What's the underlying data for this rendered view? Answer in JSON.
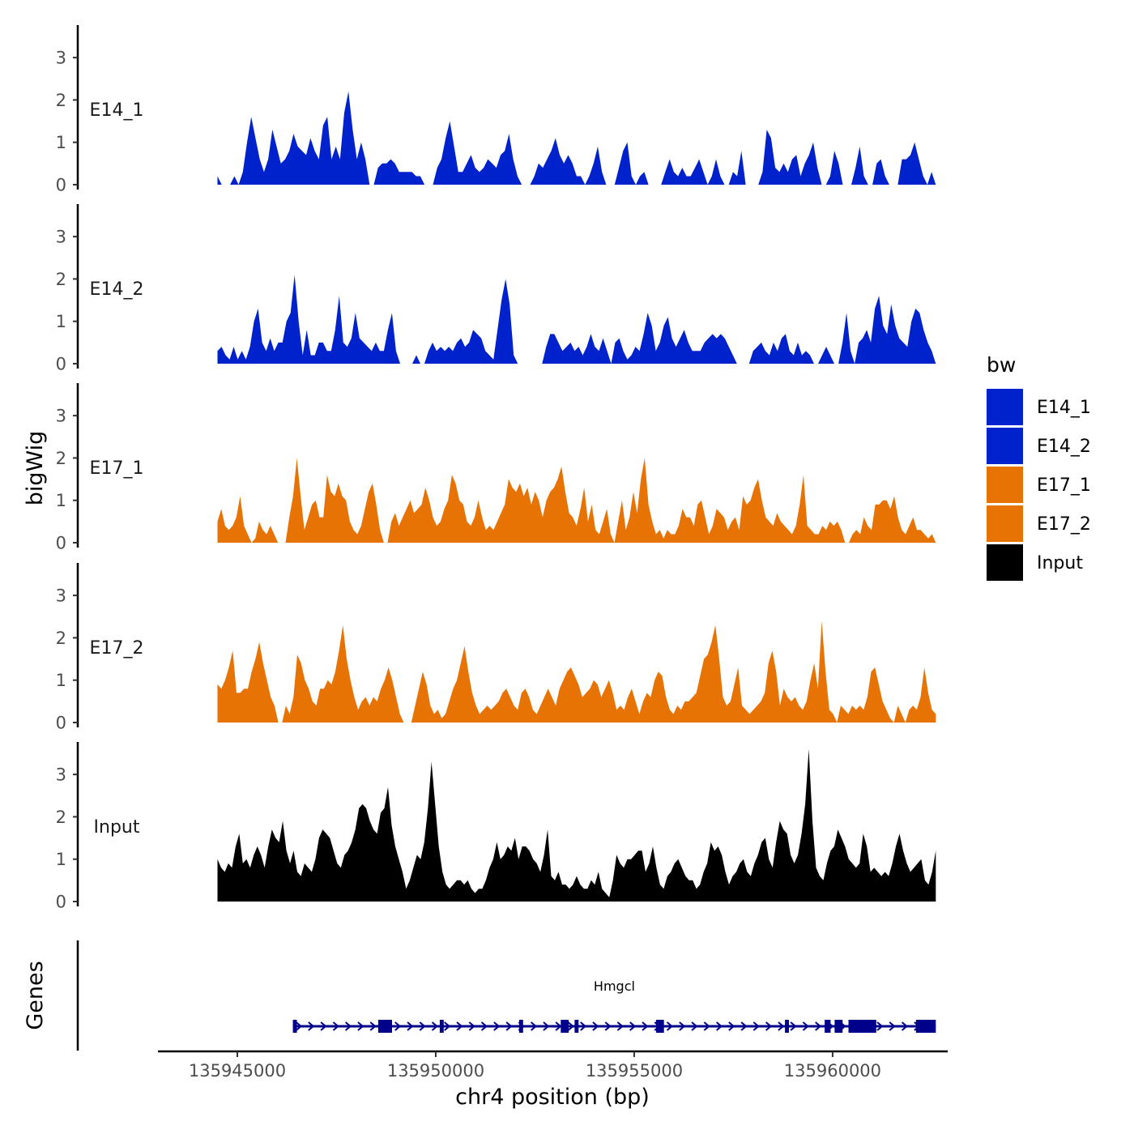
{
  "chart_data": {
    "type": "area",
    "chromosome": "chr4",
    "xlabel": "chr4 position (bp)",
    "ylabel": "bigWig",
    "genes_label": "Genes",
    "xlim": [
      135943000,
      135962900
    ],
    "ylim": [
      0,
      3.7
    ],
    "x_ticks": [
      135945000,
      135950000,
      135955000,
      135960000
    ],
    "x_tick_labels": [
      "135945000",
      "135950000",
      "135955000",
      "135960000"
    ],
    "y_ticks": [
      0,
      1,
      2,
      3
    ],
    "y_tick_labels": [
      "0",
      "1",
      "2",
      "3"
    ],
    "x_range": [
      135944500,
      135962600
    ],
    "legend": {
      "title": "bw",
      "entries": [
        {
          "label": "E14_1",
          "color": "#0022cc"
        },
        {
          "label": "E14_2",
          "color": "#0022cc"
        },
        {
          "label": "E17_1",
          "color": "#e87305"
        },
        {
          "label": "E17_2",
          "color": "#e87305"
        },
        {
          "label": "Input",
          "color": "#000000"
        }
      ]
    },
    "series": [
      {
        "name": "E14_1",
        "color": "#0022cc",
        "values": [
          0.2,
          0,
          0,
          0,
          0.2,
          0,
          0.3,
          1.0,
          1.6,
          1.1,
          0.6,
          0.3,
          0.6,
          1.3,
          0.9,
          0.5,
          0.6,
          0.8,
          1.2,
          0.9,
          0.8,
          0.7,
          1.1,
          0.8,
          0.6,
          1.4,
          1.6,
          0.6,
          0.9,
          0.6,
          1.7,
          2.2,
          1.3,
          0.6,
          1.0,
          0.6,
          0,
          0,
          0.4,
          0.5,
          0.5,
          0.6,
          0.5,
          0.3,
          0.3,
          0.3,
          0.3,
          0.2,
          0.2,
          0,
          0,
          0,
          0.4,
          0.6,
          1.1,
          1.5,
          0.9,
          0.3,
          0.3,
          0.5,
          0.7,
          0.4,
          0.3,
          0.4,
          0.6,
          0.5,
          0.4,
          0.7,
          0.8,
          1.2,
          0.6,
          0.2,
          0,
          0,
          0,
          0.2,
          0.5,
          0.4,
          0.6,
          0.8,
          1.1,
          0.7,
          0.5,
          0.7,
          0.5,
          0.2,
          0.2,
          0,
          0.2,
          0.5,
          0.9,
          0.3,
          0,
          0,
          0,
          0.4,
          0.8,
          1.0,
          0.2,
          0,
          0.2,
          0.3,
          0,
          0,
          0,
          0,
          0.3,
          0.6,
          0.3,
          0.2,
          0.4,
          0.2,
          0.2,
          0.4,
          0.6,
          0.3,
          0,
          0.2,
          0.6,
          0.2,
          0,
          0,
          0.3,
          0.2,
          0.8,
          0,
          0,
          0,
          0,
          0.3,
          1.3,
          1.1,
          0.4,
          0.3,
          0.5,
          0.3,
          0.6,
          0.7,
          0.2,
          0.5,
          0.7,
          1.0,
          0.4,
          0,
          0,
          0.2,
          0.8,
          0.5,
          0,
          0,
          0,
          0.4,
          0.9,
          0.2,
          0,
          0,
          0.5,
          0.6,
          0.2,
          0,
          0,
          0,
          0.6,
          0.6,
          0.7,
          1.0,
          0.6,
          0.2,
          0,
          0.3,
          0
        ]
      },
      {
        "name": "E14_2",
        "color": "#0022cc",
        "values": [
          0.3,
          0.4,
          0.2,
          0.1,
          0.4,
          0.1,
          0.3,
          0.1,
          0.4,
          1.0,
          1.3,
          0.5,
          0.3,
          0.6,
          0.3,
          0.5,
          0.5,
          1.0,
          1.2,
          2.1,
          1.0,
          0.2,
          0.8,
          0.2,
          0.2,
          0.5,
          0.5,
          0.3,
          0.3,
          0.8,
          1.6,
          0.5,
          0.4,
          0.6,
          1.2,
          0.6,
          0.5,
          0.4,
          0.3,
          0.5,
          0.3,
          0.3,
          0.8,
          1.2,
          0.3,
          0,
          0,
          0,
          0,
          0.2,
          0,
          0,
          0.3,
          0.5,
          0.3,
          0.4,
          0.3,
          0.4,
          0.3,
          0.5,
          0.6,
          0.4,
          0.5,
          0.8,
          0.7,
          0.6,
          0.3,
          0.2,
          0.1,
          0.8,
          1.5,
          2.0,
          1.4,
          0.2,
          0,
          0,
          0,
          0,
          0,
          0,
          0,
          0.4,
          0.7,
          0.7,
          0.5,
          0.3,
          0.4,
          0.5,
          0.3,
          0.4,
          0.2,
          0.4,
          0.7,
          0.4,
          0.3,
          0.6,
          0.3,
          0,
          0.5,
          0.6,
          0.3,
          0.1,
          0.2,
          0.4,
          0.3,
          0.7,
          1.2,
          0.9,
          0.3,
          0.5,
          0.9,
          1.1,
          0.6,
          0.4,
          0.6,
          0.8,
          0.5,
          0.3,
          0.3,
          0.3,
          0.5,
          0.6,
          0.7,
          0.6,
          0.7,
          0.6,
          0.4,
          0.2,
          0,
          0,
          0,
          0,
          0.3,
          0.4,
          0.5,
          0.3,
          0.2,
          0.5,
          0.3,
          0.6,
          0.7,
          0.3,
          0.2,
          0.5,
          0.2,
          0.3,
          0.2,
          0,
          0,
          0.2,
          0.4,
          0.2,
          0,
          0,
          0.5,
          1.2,
          0.3,
          0,
          0.5,
          0.6,
          0.8,
          0.5,
          1.3,
          1.6,
          0.9,
          0.7,
          1.4,
          0.9,
          0.6,
          0.5,
          0.4,
          1.0,
          1.3,
          1.2,
          0.8,
          0.5,
          0.3,
          0
        ]
      },
      {
        "name": "E17_1",
        "color": "#e87305",
        "values": [
          0.5,
          0.8,
          0.4,
          0.3,
          0.4,
          0.6,
          1.1,
          0.4,
          0.2,
          0,
          0.1,
          0.5,
          0.3,
          0.2,
          0.4,
          0.2,
          0,
          0,
          0,
          0.6,
          1.1,
          2.0,
          1.1,
          0.3,
          0.6,
          0.9,
          1.0,
          0.6,
          0.6,
          1.6,
          1.2,
          1.1,
          1.4,
          1.1,
          1.0,
          0.5,
          0.3,
          0.2,
          0.4,
          0.8,
          1.2,
          1.4,
          0.9,
          0.3,
          0,
          0,
          0.5,
          0.7,
          0.4,
          0.6,
          0.8,
          1.0,
          0.7,
          0.8,
          0.9,
          1.3,
          1.0,
          0.6,
          0.4,
          0.5,
          0.8,
          1.0,
          1.6,
          1.4,
          1.0,
          0.9,
          0.5,
          0.4,
          0.6,
          1.0,
          0.6,
          0.3,
          0.4,
          0.3,
          0.5,
          0.7,
          0.9,
          1.5,
          1.3,
          1.2,
          1.4,
          1.1,
          1.3,
          0.9,
          1.2,
          1.0,
          0.6,
          1.0,
          1.2,
          1.3,
          1.5,
          1.8,
          1.2,
          0.7,
          0.6,
          0.4,
          0.8,
          1.3,
          0.5,
          0.9,
          0.3,
          0.2,
          0.5,
          0.8,
          0.2,
          0,
          0.5,
          1.0,
          0.3,
          0.6,
          1.2,
          0.7,
          1.5,
          2.0,
          0.9,
          0.5,
          0.2,
          0.3,
          0.1,
          0.3,
          0.2,
          0.2,
          0.4,
          0.8,
          0.6,
          0.6,
          0.4,
          0.9,
          1.0,
          0.6,
          0.2,
          0.4,
          0.8,
          0.7,
          0.6,
          0.3,
          0.5,
          0.6,
          0.3,
          1.1,
          0.9,
          1.0,
          1.3,
          1.5,
          1.0,
          0.6,
          0.5,
          0.4,
          0.7,
          0.5,
          0.4,
          0.3,
          0.2,
          0.4,
          0.9,
          1.6,
          0.4,
          0.3,
          0.2,
          0.2,
          0.4,
          0.3,
          0.5,
          0.4,
          0.5,
          0.3,
          0,
          0,
          0.2,
          0.3,
          0.2,
          0.6,
          0.4,
          0.3,
          0.9,
          0.9,
          1.0,
          1.0,
          0.8,
          1.1,
          0.6,
          0.3,
          0.2,
          0.4,
          0.6,
          0.3,
          0.3,
          0.2,
          0.1,
          0.2,
          0
        ]
      },
      {
        "name": "E17_2",
        "color": "#e87305",
        "values": [
          0.9,
          0.8,
          1.0,
          1.3,
          1.7,
          0.7,
          0.7,
          0.8,
          0.8,
          1.2,
          1.5,
          1.9,
          1.4,
          1.0,
          0.6,
          0.4,
          0,
          0,
          0.4,
          0.2,
          0.6,
          1.6,
          1.4,
          1.0,
          0.8,
          0.5,
          0.4,
          0.8,
          0.8,
          1.0,
          0.9,
          1.2,
          1.7,
          2.3,
          1.5,
          1.0,
          0.6,
          0.3,
          0.5,
          0.6,
          0.4,
          0.6,
          0.5,
          0.8,
          1.0,
          1.3,
          1.0,
          0.6,
          0.2,
          0,
          0,
          0,
          0.4,
          0.8,
          1.2,
          0.9,
          0.4,
          0.2,
          0.3,
          0.1,
          0.2,
          0.5,
          0.8,
          1.0,
          1.4,
          1.8,
          1.2,
          0.7,
          0.4,
          0.2,
          0.3,
          0.4,
          0.3,
          0.4,
          0.5,
          0.7,
          0.8,
          0.6,
          0.4,
          0.3,
          0.7,
          0.8,
          0.6,
          0.3,
          0.2,
          0.4,
          0.6,
          0.8,
          0.6,
          0.4,
          0.8,
          1.0,
          1.2,
          1.3,
          1.1,
          0.9,
          0.6,
          0.7,
          0.8,
          1.0,
          0.9,
          0.6,
          0.8,
          1.0,
          0.7,
          0.3,
          0.4,
          0.3,
          0.6,
          0.8,
          0.5,
          0.2,
          0.5,
          0.7,
          0.6,
          1.0,
          1.2,
          1.1,
          0.6,
          0.3,
          0.2,
          0.4,
          0.3,
          0.5,
          0.5,
          0.6,
          0.7,
          1.1,
          1.5,
          1.6,
          1.9,
          2.3,
          1.5,
          0.6,
          0.4,
          0.5,
          0.9,
          1.3,
          0.4,
          0.3,
          0.2,
          0.3,
          0.4,
          0.5,
          0.7,
          1.4,
          1.7,
          1.2,
          0.4,
          0.8,
          0.6,
          0.5,
          0.6,
          0.4,
          0.3,
          0.5,
          1.0,
          1.4,
          0.8,
          2.4,
          1.2,
          0.3,
          0.2,
          0,
          0.4,
          0.3,
          0.2,
          0.4,
          0.3,
          0.4,
          0.3,
          0.6,
          1.2,
          1.3,
          0.9,
          0.5,
          0.3,
          0.1,
          0,
          0.4,
          0.2,
          0,
          0.3,
          0.4,
          0.3,
          0.6,
          1.3,
          0.7,
          0.3,
          0.2
        ]
      },
      {
        "name": "Input",
        "color": "#000000",
        "values": [
          1.0,
          0.8,
          0.7,
          0.9,
          0.8,
          1.3,
          1.6,
          0.9,
          1.0,
          0.8,
          1.1,
          1.3,
          1.1,
          0.8,
          1.3,
          1.7,
          1.5,
          1.4,
          1.9,
          1.2,
          0.9,
          1.2,
          0.7,
          0.6,
          0.9,
          0.8,
          0.7,
          1.0,
          1.5,
          1.7,
          1.6,
          1.5,
          1.2,
          0.9,
          0.8,
          1.1,
          1.2,
          1.4,
          1.7,
          2.2,
          2.3,
          2.2,
          1.9,
          1.7,
          1.6,
          2.1,
          2.2,
          2.7,
          1.8,
          1.3,
          1.0,
          0.7,
          0.3,
          0.5,
          0.8,
          1.1,
          1.0,
          1.4,
          2.2,
          3.3,
          2.3,
          1.3,
          0.7,
          0.4,
          0.3,
          0.4,
          0.5,
          0.5,
          0.4,
          0.5,
          0.3,
          0.2,
          0.3,
          0.3,
          0.5,
          0.8,
          1.0,
          1.4,
          1.0,
          1.1,
          1.3,
          1.2,
          1.5,
          1.0,
          1.3,
          1.3,
          1.2,
          1.0,
          0.9,
          0.7,
          1.1,
          1.7,
          0.6,
          0.5,
          0.7,
          0.4,
          0.4,
          0.3,
          0.4,
          0.6,
          0.4,
          0.3,
          0.3,
          0.5,
          0.4,
          0.7,
          0.3,
          0.2,
          0.1,
          0.5,
          1.1,
          0.9,
          0.8,
          1.0,
          1.0,
          1.1,
          1.2,
          1.2,
          0.7,
          0.9,
          1.3,
          0.8,
          0.4,
          0.3,
          0.6,
          0.7,
          0.9,
          1.0,
          0.8,
          0.6,
          0.5,
          0.5,
          0.3,
          0.4,
          0.7,
          0.9,
          1.4,
          1.2,
          1.3,
          1.1,
          0.7,
          0.4,
          0.6,
          0.7,
          0.9,
          1.0,
          0.7,
          0.6,
          0.9,
          1.1,
          1.4,
          1.5,
          1.0,
          0.8,
          1.4,
          1.9,
          1.7,
          1.6,
          1.1,
          0.9,
          1.1,
          1.6,
          2.3,
          3.6,
          1.9,
          0.8,
          0.6,
          0.5,
          0.9,
          1.2,
          1.3,
          1.7,
          1.5,
          1.3,
          1.0,
          0.9,
          0.8,
          0.9,
          1.6,
          1.3,
          0.7,
          0.8,
          0.7,
          0.6,
          0.7,
          0.6,
          0.9,
          1.3,
          1.6,
          1.2,
          0.9,
          0.7,
          0.8,
          0.9,
          1.0,
          0.5,
          0.4,
          0.7,
          1.2
        ]
      }
    ],
    "gene": {
      "name": "Hmgcl",
      "strand": "+",
      "start": 135946400,
      "end": 135962600,
      "exons": [
        [
          135946400,
          135946500
        ],
        [
          135948550,
          135948900
        ],
        [
          135950100,
          135950200
        ],
        [
          135952100,
          135952200
        ],
        [
          135953150,
          135953350
        ],
        [
          135953500,
          135953600
        ],
        [
          135955550,
          135955750
        ],
        [
          135958800,
          135958900
        ],
        [
          135959800,
          135959950
        ],
        [
          135960050,
          135960250
        ],
        [
          135960400,
          135961100
        ],
        [
          135962100,
          135962600
        ]
      ]
    }
  }
}
